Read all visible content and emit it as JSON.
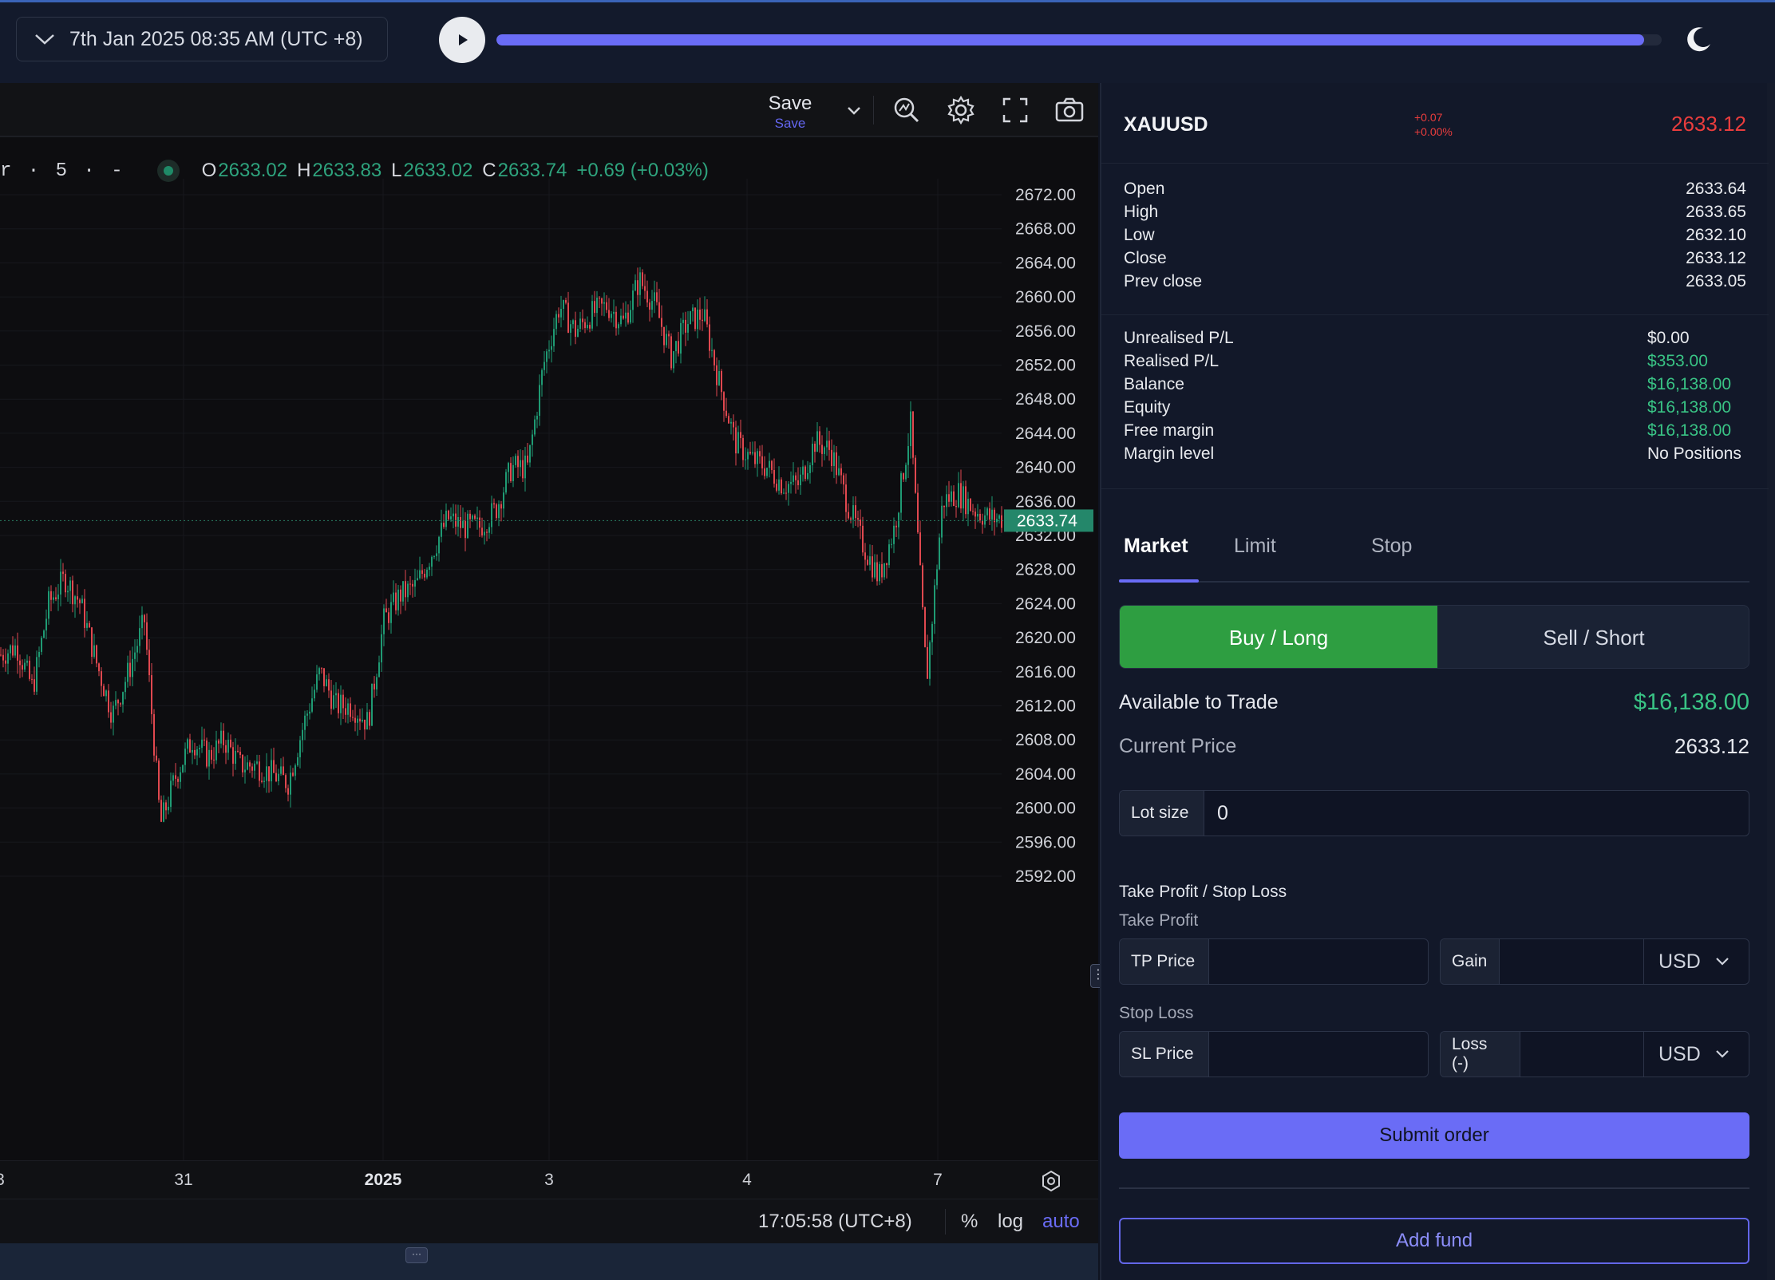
{
  "topbar": {
    "datetime": "7th Jan 2025 08:35 AM (UTC +8)",
    "progress": 0.985,
    "icons": {
      "dropdown": "chevron-down-icon",
      "play": "play-icon",
      "theme": "moon-icon"
    }
  },
  "chart_toolbar": {
    "save_label": "Save",
    "save_sub": "Save",
    "icons": [
      "chevron-down-icon",
      "indicator-icon",
      "gear-icon",
      "fullscreen-icon",
      "camera-icon"
    ]
  },
  "legend": {
    "symbol_fragment": "r · 5 · -",
    "o_label": "O",
    "o_value": "2633.02",
    "h_label": "H",
    "h_value": "2633.83",
    "l_label": "L",
    "l_value": "2633.02",
    "c_label": "C",
    "c_value": "2633.74",
    "change": "+0.69 (+0.03%)"
  },
  "chart_data": {
    "type": "candlestick",
    "ylim": [
      2590,
      2674
    ],
    "price_ticks": [
      "2672.00",
      "2668.00",
      "2664.00",
      "2660.00",
      "2656.00",
      "2652.00",
      "2648.00",
      "2644.00",
      "2640.00",
      "2636.00",
      "2632.00",
      "2628.00",
      "2624.00",
      "2620.00",
      "2616.00",
      "2612.00",
      "2608.00",
      "2604.00",
      "2600.00",
      "2596.00",
      "2592.00"
    ],
    "last_price_label": "2633.74",
    "last_price": 2633.74,
    "time_labels": [
      {
        "text": "3",
        "bold": false
      },
      {
        "text": "31",
        "bold": false
      },
      {
        "text": "2025",
        "bold": true
      },
      {
        "text": "3",
        "bold": false
      },
      {
        "text": "4",
        "bold": false
      },
      {
        "text": "7",
        "bold": false
      }
    ],
    "path": [
      [
        0,
        2618
      ],
      [
        20,
        2619
      ],
      [
        40,
        2614
      ],
      [
        60,
        2624
      ],
      [
        80,
        2627
      ],
      [
        100,
        2624
      ],
      [
        120,
        2617
      ],
      [
        140,
        2611
      ],
      [
        160,
        2616
      ],
      [
        180,
        2622
      ],
      [
        200,
        2598
      ],
      [
        220,
        2604
      ],
      [
        240,
        2608
      ],
      [
        260,
        2606
      ],
      [
        280,
        2608
      ],
      [
        300,
        2605
      ],
      [
        320,
        2605
      ],
      [
        340,
        2604
      ],
      [
        360,
        2603
      ],
      [
        380,
        2610
      ],
      [
        400,
        2616
      ],
      [
        420,
        2612
      ],
      [
        440,
        2612
      ],
      [
        460,
        2610
      ],
      [
        480,
        2622
      ],
      [
        500,
        2625
      ],
      [
        520,
        2626
      ],
      [
        540,
        2630
      ],
      [
        560,
        2634
      ],
      [
        580,
        2633
      ],
      [
        600,
        2633
      ],
      [
        620,
        2635
      ],
      [
        640,
        2640
      ],
      [
        660,
        2640
      ],
      [
        680,
        2652
      ],
      [
        700,
        2659
      ],
      [
        720,
        2656
      ],
      [
        740,
        2658
      ],
      [
        760,
        2659
      ],
      [
        780,
        2657
      ],
      [
        800,
        2662
      ],
      [
        820,
        2659
      ],
      [
        840,
        2653
      ],
      [
        860,
        2657
      ],
      [
        880,
        2658
      ],
      [
        900,
        2650
      ],
      [
        920,
        2643
      ],
      [
        940,
        2641
      ],
      [
        960,
        2640
      ],
      [
        980,
        2638
      ],
      [
        1000,
        2638
      ],
      [
        1020,
        2643
      ],
      [
        1040,
        2642
      ],
      [
        1060,
        2636
      ],
      [
        1080,
        2631
      ],
      [
        1100,
        2627
      ],
      [
        1120,
        2633
      ],
      [
        1140,
        2645
      ],
      [
        1160,
        2615
      ],
      [
        1180,
        2636
      ],
      [
        1200,
        2637
      ],
      [
        1220,
        2635
      ],
      [
        1240,
        2634
      ],
      [
        1256,
        2634
      ]
    ]
  },
  "time_axis_icon": "settings-icon",
  "bottom_bar": {
    "clock": "17:05:58 (UTC+8)",
    "pct": "%",
    "log": "log",
    "auto": "auto",
    "handle": "···"
  },
  "panel": {
    "symbol": "XAUUSD",
    "change_abs": "+0.07",
    "change_pct": "+0.00%",
    "price": "2633.12",
    "ohlc": [
      {
        "k": "Open",
        "v": "2633.64"
      },
      {
        "k": "High",
        "v": "2633.65"
      },
      {
        "k": "Low",
        "v": "2632.10"
      },
      {
        "k": "Close",
        "v": "2633.12"
      },
      {
        "k": "Prev close",
        "v": "2633.05"
      }
    ],
    "account": [
      {
        "k": "Unrealised P/L",
        "v": "$0.00",
        "green": false
      },
      {
        "k": "Realised P/L",
        "v": "$353.00",
        "green": true
      },
      {
        "k": "Balance",
        "v": "$16,138.00",
        "green": true
      },
      {
        "k": "Equity",
        "v": "$16,138.00",
        "green": true
      },
      {
        "k": "Free margin",
        "v": "$16,138.00",
        "green": true
      },
      {
        "k": "Margin level",
        "v": "No Positions",
        "green": false
      }
    ],
    "tabs": {
      "market": "Market",
      "limit": "Limit",
      "stop": "Stop"
    },
    "buy": "Buy / Long",
    "sell": "Sell / Short",
    "available_label": "Available to Trade",
    "available_value": "$16,138.00",
    "current_price_label": "Current Price",
    "current_price_value": "2633.12",
    "lot_label": "Lot size",
    "lot_value": "0",
    "tpsl_title": "Take Profit / Stop Loss",
    "tp_title": "Take Profit",
    "tp_price_label": "TP Price",
    "gain_label": "Gain",
    "tp_unit": "USD",
    "sl_title": "Stop Loss",
    "sl_price_label": "SL Price",
    "loss_label": "Loss (-)",
    "sl_unit": "USD",
    "submit": "Submit order",
    "add_fund": "Add fund"
  }
}
